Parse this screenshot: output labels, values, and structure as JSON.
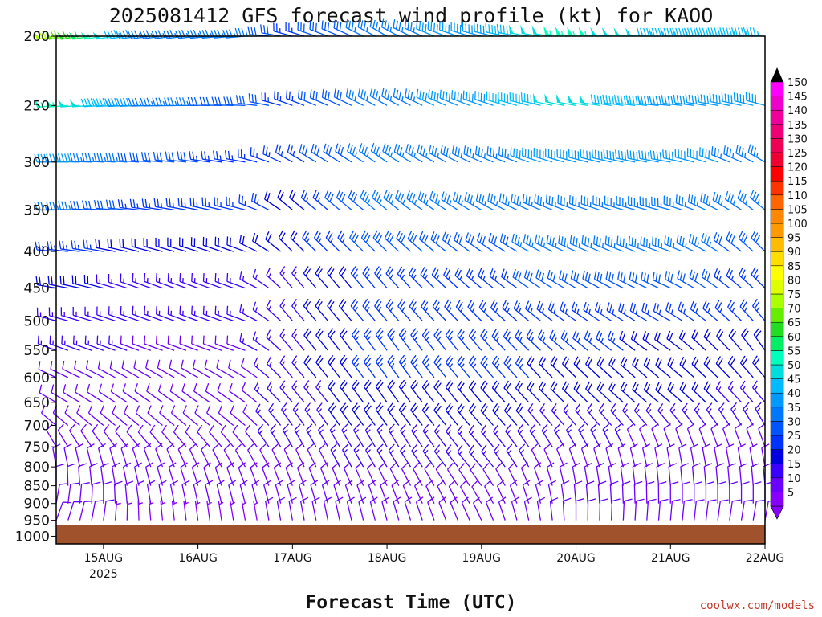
{
  "chart_data": {
    "type": "wind-barb-time-height",
    "title": "2025081412 GFS forecast wind profile (kt) for KAOO",
    "xlabel": "Forecast Time (UTC)",
    "credit": "coolwx.com/models",
    "x_ticks": [
      {
        "label": "15AUG",
        "sublabel": "2025",
        "hours": 12
      },
      {
        "label": "16AUG",
        "sublabel": "",
        "hours": 36
      },
      {
        "label": "17AUG",
        "sublabel": "",
        "hours": 60
      },
      {
        "label": "18AUG",
        "sublabel": "",
        "hours": 84
      },
      {
        "label": "19AUG",
        "sublabel": "",
        "hours": 108
      },
      {
        "label": "20AUG",
        "sublabel": "",
        "hours": 132
      },
      {
        "label": "21AUG",
        "sublabel": "",
        "hours": 156
      },
      {
        "label": "22AUG",
        "sublabel": "",
        "hours": 180
      }
    ],
    "x_range_hours": [
      0,
      180
    ],
    "y_ticks": [
      200,
      250,
      300,
      350,
      400,
      450,
      500,
      550,
      600,
      650,
      700,
      750,
      800,
      850,
      900,
      950,
      1000
    ],
    "y_range_hpa": [
      200,
      1025
    ],
    "ground_level_hpa": 965,
    "colorbar": {
      "levels": [
        "5",
        "10",
        "15",
        "20",
        "25",
        "30",
        "35",
        "40",
        "45",
        "50",
        "55",
        "60",
        "65",
        "70",
        "75",
        "80",
        "85",
        "90",
        "95",
        "100",
        "105",
        "110",
        "115",
        "120",
        "125",
        "130",
        "135",
        "140",
        "145",
        "150"
      ],
      "colors": [
        "#8800ff",
        "#6a00ff",
        "#3a00ff",
        "#0000e0",
        "#0033ff",
        "#0055ff",
        "#0077ff",
        "#0099ff",
        "#00bbff",
        "#00dddd",
        "#00ffbb",
        "#00ee66",
        "#22dd22",
        "#66ee00",
        "#aaff00",
        "#ddff00",
        "#ffff00",
        "#ffdd00",
        "#ffbb00",
        "#ff9900",
        "#ff8800",
        "#ff6600",
        "#ff3300",
        "#ff0000",
        "#ee0033",
        "#ee0055",
        "#ee0077",
        "#ee0099",
        "#ee00cc",
        "#ff00ff"
      ]
    },
    "grid": false,
    "wind_field": {
      "time_step_hours": 3,
      "levels_hpa": [
        200,
        250,
        300,
        350,
        400,
        450,
        500,
        550,
        600,
        650,
        700,
        750,
        800,
        850,
        900,
        950
      ],
      "keyframes_hours": [
        0,
        24,
        48,
        60,
        84,
        108,
        132,
        156,
        180
      ],
      "direction_deg": [
        [
          260,
          262,
          265,
          285,
          300,
          285,
          275,
          270,
          272
        ],
        [
          265,
          268,
          272,
          290,
          300,
          290,
          280,
          275,
          285
        ],
        [
          270,
          275,
          280,
          300,
          305,
          295,
          285,
          280,
          300
        ],
        [
          270,
          278,
          285,
          310,
          310,
          300,
          290,
          285,
          310
        ],
        [
          275,
          285,
          290,
          315,
          315,
          305,
          295,
          290,
          315
        ],
        [
          280,
          290,
          290,
          320,
          320,
          310,
          300,
          295,
          315
        ],
        [
          285,
          290,
          290,
          320,
          320,
          315,
          305,
          300,
          320
        ],
        [
          290,
          290,
          290,
          320,
          325,
          320,
          310,
          305,
          325
        ],
        [
          295,
          300,
          300,
          320,
          325,
          320,
          315,
          310,
          320
        ],
        [
          300,
          305,
          305,
          320,
          325,
          320,
          315,
          310,
          320
        ],
        [
          310,
          310,
          310,
          325,
          325,
          320,
          320,
          320,
          330
        ],
        [
          330,
          320,
          320,
          330,
          330,
          320,
          330,
          340,
          340
        ],
        [
          350,
          340,
          330,
          335,
          330,
          320,
          340,
          350,
          350
        ],
        [
          360,
          345,
          340,
          340,
          335,
          325,
          350,
          355,
          355
        ],
        [
          10,
          350,
          345,
          345,
          340,
          330,
          355,
          360,
          360
        ],
        [
          20,
          355,
          350,
          350,
          345,
          335,
          360,
          5,
          10
        ]
      ],
      "speed_kt": [
        [
          75,
          35,
          35,
          25,
          35,
          40,
          55,
          45,
          45
        ],
        [
          55,
          35,
          30,
          25,
          35,
          40,
          50,
          40,
          40
        ],
        [
          40,
          30,
          25,
          25,
          35,
          35,
          40,
          40,
          35
        ],
        [
          35,
          25,
          25,
          20,
          35,
          35,
          35,
          35,
          35
        ],
        [
          25,
          20,
          20,
          20,
          30,
          30,
          35,
          35,
          30
        ],
        [
          20,
          15,
          15,
          15,
          25,
          25,
          30,
          30,
          25
        ],
        [
          15,
          15,
          15,
          15,
          25,
          25,
          25,
          25,
          25
        ],
        [
          15,
          12,
          12,
          15,
          25,
          25,
          25,
          20,
          20
        ],
        [
          10,
          10,
          10,
          15,
          25,
          25,
          20,
          20,
          20
        ],
        [
          10,
          10,
          10,
          15,
          20,
          20,
          20,
          20,
          15
        ],
        [
          10,
          10,
          10,
          15,
          20,
          20,
          15,
          15,
          15
        ],
        [
          10,
          10,
          10,
          15,
          15,
          15,
          15,
          10,
          10
        ],
        [
          10,
          10,
          10,
          10,
          15,
          15,
          10,
          10,
          10
        ],
        [
          10,
          10,
          10,
          10,
          10,
          10,
          10,
          10,
          10
        ],
        [
          10,
          10,
          10,
          10,
          10,
          10,
          10,
          10,
          10
        ],
        [
          10,
          5,
          5,
          10,
          10,
          10,
          10,
          10,
          10
        ]
      ]
    }
  }
}
